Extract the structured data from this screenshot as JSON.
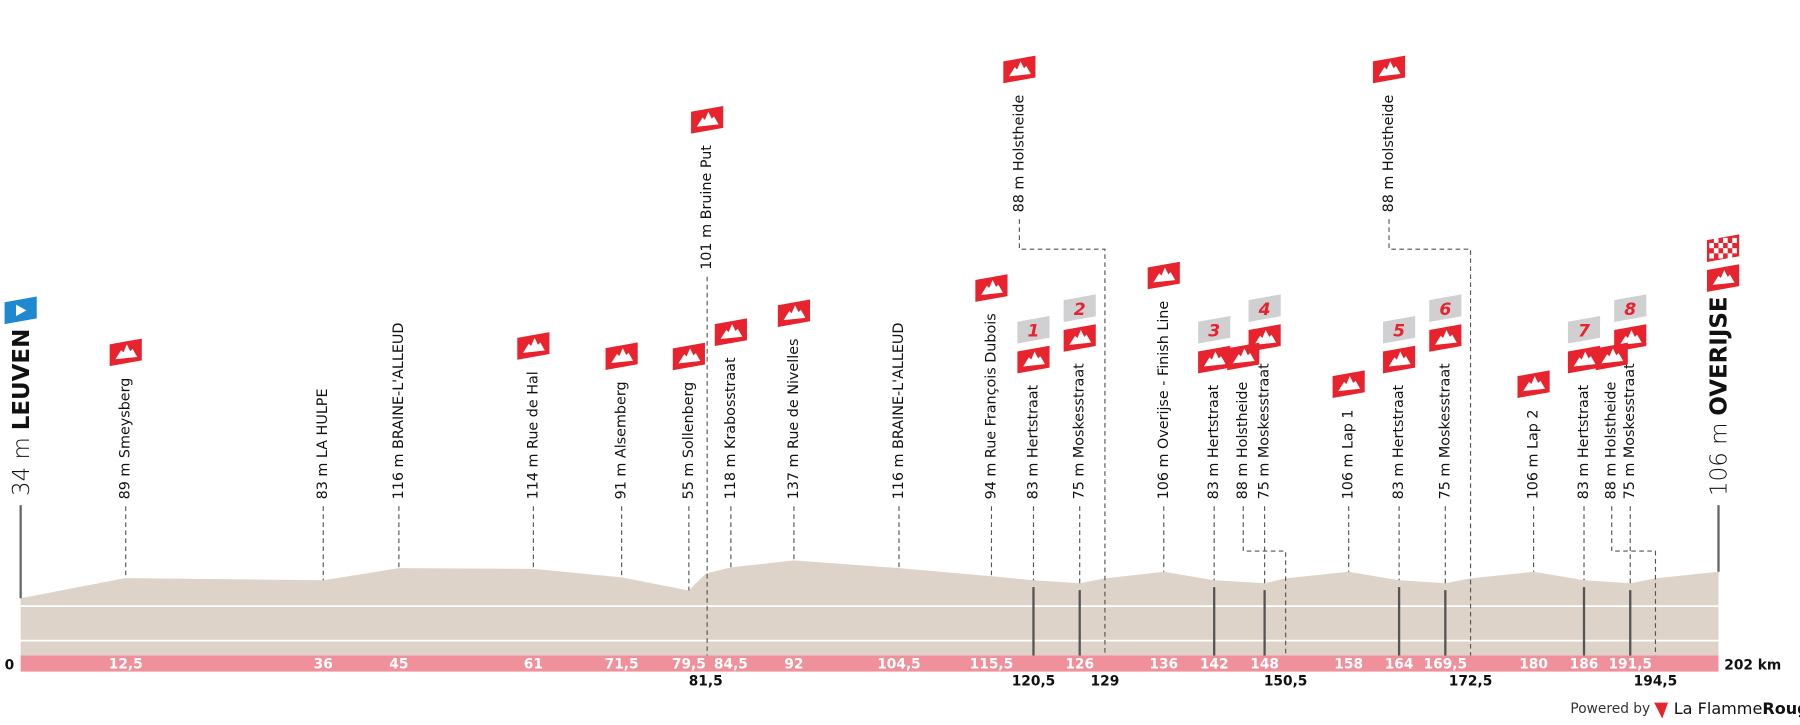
{
  "chart_data": {
    "type": "profile",
    "xlim": [
      0,
      202
    ],
    "xticks": [
      0,
      {
        "value": 202,
        "label": "202 km"
      }
    ],
    "start": {
      "elevation": 34,
      "elevation_label": "34 m",
      "name": "LEUVEN"
    },
    "finish": {
      "elevation": 106,
      "elevation_label": "106 m",
      "name": "OVERIJSE"
    },
    "points": [
      {
        "km": {
          "value": 12.5,
          "label": "12,5"
        },
        "elevation": 89,
        "label": "89 m Smeysberg",
        "icon": true
      },
      {
        "km": 36,
        "elevation": 83,
        "label": "83 m LA HULPE",
        "icon": false
      },
      {
        "km": 45,
        "elevation": 116,
        "label": "116 m BRAINE-L'ALLEUD",
        "icon": false
      },
      {
        "km": 61,
        "elevation": 114,
        "label": "114 m Rue de Hal",
        "icon": true
      },
      {
        "km": {
          "value": 71.5,
          "label": "71,5"
        },
        "elevation": 91,
        "label": "91 m Alsemberg",
        "icon": true
      },
      {
        "km": {
          "value": 79.5,
          "label": "79,5"
        },
        "elevation": 55,
        "label": "55 m Sollenberg",
        "icon": true
      },
      {
        "km": {
          "value": 81.5,
          "label": "81,5"
        },
        "elevation": 101,
        "label": "101 m Bruine Put",
        "icon": true
      },
      {
        "km": {
          "value": 84.5,
          "label": "84,5"
        },
        "elevation": 118,
        "label": "118 m Krabosstraat",
        "icon": true
      },
      {
        "km": 92,
        "elevation": 137,
        "label": "137 m Rue de Nivelles",
        "icon": true
      },
      {
        "km": {
          "value": 104.5,
          "label": "104,5"
        },
        "elevation": 116,
        "label": "116 m BRAINE-L'ALLEUD",
        "icon": false
      },
      {
        "km": {
          "value": 115.5,
          "label": "115,5"
        },
        "elevation": 94,
        "label": "94 m Rue François Dubois",
        "icon": true
      },
      {
        "km": {
          "value": 120.5,
          "label": "120,5"
        },
        "elevation": 83,
        "label": "83 m Hertstraat",
        "icon": true,
        "badge": "1"
      },
      {
        "km": 126,
        "elevation": 75,
        "label": "75 m Moskesstraat",
        "icon": true,
        "badge": "2"
      },
      {
        "km": 129,
        "elevation": 88,
        "label": "88 m Holstheide",
        "icon": true
      },
      {
        "km": 136,
        "elevation": 106,
        "label": "106 m Overijse - Finish Line",
        "icon": true
      },
      {
        "km": 142,
        "elevation": 83,
        "label": "83 m Hertstraat",
        "icon": true,
        "badge": "3"
      },
      {
        "km": 148,
        "elevation": 75,
        "label": "75 m Moskesstraat",
        "icon": true,
        "badge": "4"
      },
      {
        "km": {
          "value": 150.5,
          "label": "150,5"
        },
        "elevation": 88,
        "label": "88 m Holstheide",
        "icon": true
      },
      {
        "km": 158,
        "elevation": 106,
        "label": "106 m Lap 1",
        "icon": true
      },
      {
        "km": 164,
        "elevation": 83,
        "label": "83 m Hertstraat",
        "icon": true,
        "badge": "5"
      },
      {
        "km": {
          "value": 169.5,
          "label": "169,5"
        },
        "elevation": 75,
        "label": "75 m Moskesstraat",
        "icon": true,
        "badge": "6"
      },
      {
        "km": {
          "value": 172.5,
          "label": "172,5"
        },
        "elevation": 88,
        "label": "88 m Holstheide",
        "icon": true
      },
      {
        "km": 180,
        "elevation": 106,
        "label": "106 m Lap 2",
        "icon": true
      },
      {
        "km": 186,
        "elevation": 83,
        "label": "83 m Hertstraat",
        "icon": true,
        "badge": "7"
      },
      {
        "km": {
          "value": 191.5,
          "label": "191,5"
        },
        "elevation": 75,
        "label": "75 m Moskesstraat",
        "icon": true,
        "badge": "8"
      },
      {
        "km": {
          "value": 194.5,
          "label": "194,5"
        },
        "elevation": 88,
        "label": "88 m Holstheide",
        "icon": true
      }
    ]
  },
  "footer": {
    "powered_by": "Powered by",
    "brand": "La Flamme",
    "brand_bold": "Rouge"
  }
}
